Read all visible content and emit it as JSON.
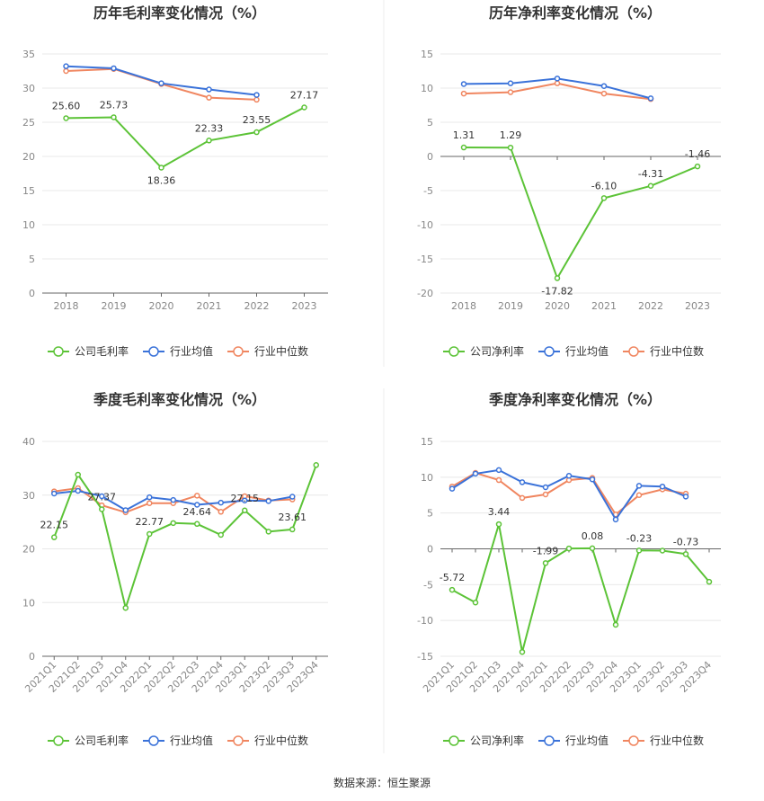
{
  "source_text": "数据来源：恒生聚源",
  "colors": {
    "company": "#5cc337",
    "industry_avg": "#3a72d9",
    "industry_median": "#f08660"
  },
  "chart_data": [
    {
      "type": "line",
      "title": "历年毛利率变化情况（%）",
      "categories": [
        "2018",
        "2019",
        "2020",
        "2021",
        "2022",
        "2023"
      ],
      "ylim": [
        0,
        35
      ],
      "yticks": [
        0,
        5,
        10,
        15,
        20,
        25,
        30,
        35
      ],
      "series": [
        {
          "name": "公司毛利率",
          "values": [
            25.6,
            25.73,
            18.36,
            22.33,
            23.55,
            27.17
          ],
          "labels": [
            "25.60",
            "25.73",
            "18.36",
            "22.33",
            "23.55",
            "27.17"
          ]
        },
        {
          "name": "行业均值",
          "values": [
            33.2,
            32.9,
            30.7,
            29.8,
            29.0,
            null
          ]
        },
        {
          "name": "行业中位数",
          "values": [
            32.5,
            32.8,
            30.6,
            28.6,
            28.3,
            null
          ]
        }
      ],
      "legend": "bottom"
    },
    {
      "type": "line",
      "title": "历年净利率变化情况（%）",
      "categories": [
        "2018",
        "2019",
        "2020",
        "2021",
        "2022",
        "2023"
      ],
      "ylim": [
        -20,
        15
      ],
      "yticks": [
        -20,
        -15,
        -10,
        -5,
        0,
        5,
        10,
        15
      ],
      "series": [
        {
          "name": "公司净利率",
          "values": [
            1.31,
            1.29,
            -17.82,
            -6.1,
            -4.31,
            -1.46
          ],
          "labels": [
            "1.31",
            "1.29",
            "-17.82",
            "-6.10",
            "-4.31",
            "-1.46"
          ]
        },
        {
          "name": "行业均值",
          "values": [
            10.6,
            10.7,
            11.4,
            10.3,
            8.5,
            null
          ]
        },
        {
          "name": "行业中位数",
          "values": [
            9.2,
            9.4,
            10.7,
            9.2,
            8.4,
            null
          ]
        }
      ],
      "legend": "bottom"
    },
    {
      "type": "line",
      "title": "季度毛利率变化情况（%）",
      "categories": [
        "2021Q1",
        "2021Q2",
        "2021Q3",
        "2021Q4",
        "2022Q1",
        "2022Q2",
        "2022Q3",
        "2022Q4",
        "2023Q1",
        "2023Q2",
        "2023Q3",
        "2023Q4"
      ],
      "ylim": [
        0,
        40
      ],
      "yticks": [
        0,
        10,
        20,
        30,
        40
      ],
      "series": [
        {
          "name": "公司毛利率",
          "values": [
            22.15,
            33.8,
            27.37,
            9.0,
            22.77,
            24.8,
            24.64,
            22.6,
            27.15,
            23.2,
            23.61,
            35.6
          ],
          "labels": [
            "22.15",
            "",
            "27.37",
            "",
            "22.77",
            "",
            "24.64",
            "",
            "27.15",
            "",
            "23.61",
            ""
          ]
        },
        {
          "name": "行业均值",
          "values": [
            30.3,
            30.8,
            29.8,
            27.2,
            29.6,
            29.1,
            28.2,
            28.6,
            29.0,
            28.9,
            29.7,
            null
          ]
        },
        {
          "name": "行业中位数",
          "values": [
            30.7,
            31.3,
            28.1,
            26.8,
            28.5,
            28.5,
            29.9,
            26.9,
            29.8,
            29.0,
            29.2,
            null
          ]
        }
      ],
      "legend": "bottom"
    },
    {
      "type": "line",
      "title": "季度净利率变化情况（%）",
      "categories": [
        "2021Q1",
        "2021Q2",
        "2021Q3",
        "2021Q4",
        "2022Q1",
        "2022Q2",
        "2022Q3",
        "2022Q4",
        "2023Q1",
        "2023Q2",
        "2023Q3",
        "2023Q4"
      ],
      "ylim": [
        -15,
        15
      ],
      "yticks": [
        -15,
        -10,
        -5,
        0,
        5,
        10,
        15
      ],
      "series": [
        {
          "name": "公司净利率",
          "values": [
            -5.72,
            -7.5,
            3.44,
            -14.4,
            -1.99,
            0.05,
            0.08,
            -10.6,
            -0.23,
            -0.25,
            -0.73,
            -4.6
          ],
          "labels": [
            "-5.72",
            "",
            "3.44",
            "",
            "-1.99",
            "",
            "0.08",
            "",
            "-0.23",
            "",
            "-0.73",
            ""
          ]
        },
        {
          "name": "行业均值",
          "values": [
            8.4,
            10.5,
            11.0,
            9.3,
            8.6,
            10.2,
            9.7,
            4.1,
            8.8,
            8.7,
            7.3,
            null
          ]
        },
        {
          "name": "行业中位数",
          "values": [
            8.7,
            10.6,
            9.6,
            7.1,
            7.6,
            9.6,
            9.9,
            4.8,
            7.5,
            8.3,
            7.7,
            null
          ]
        }
      ],
      "legend": "bottom"
    }
  ]
}
